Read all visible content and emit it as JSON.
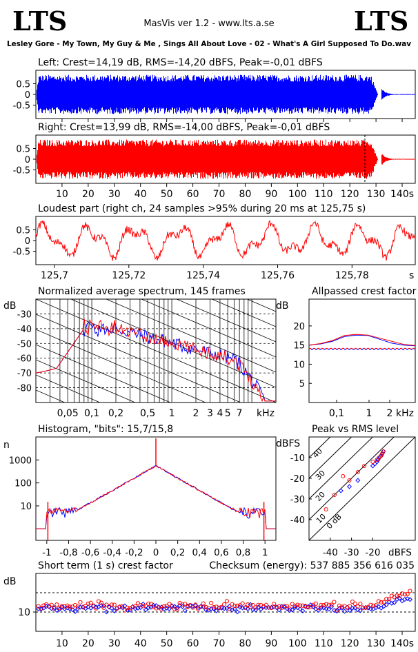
{
  "header": {
    "logo_left": "LTS",
    "logo_right": "LTS",
    "app_title": "MasVis ver 1.2 - www.lts.a.se",
    "track": "Lesley Gore - My Town, My Guy & Me , Sings All About Love - 02 - What's A Girl Supposed To Do.wav"
  },
  "colors": {
    "left": "#0000ff",
    "right": "#ff0000",
    "axis": "#000000"
  },
  "chart_data": [
    {
      "id": "left",
      "type": "line",
      "title": "Left: Crest=14,19 dB, RMS=-14,20 dBFS, Peak=-0,01 dBFS",
      "yticks": [
        "0.5",
        "0",
        "-0.5"
      ],
      "ylim": [
        -1,
        1
      ],
      "xlim": [
        0,
        145
      ],
      "envelope": {
        "duration_s": 132,
        "fade_start_s": 128,
        "end_s": 145
      }
    },
    {
      "id": "right",
      "type": "line",
      "title": "Right: Crest=13,99 dB, RMS=-14,00 dBFS, Peak=-0,01 dBFS",
      "yticks": [
        "0.5",
        "0",
        "-0.5"
      ],
      "ylim": [
        -1,
        1
      ],
      "xlim": [
        0,
        145
      ],
      "xticks": [
        "10",
        "20",
        "30",
        "40",
        "50",
        "60",
        "70",
        "80",
        "90",
        "100",
        "110",
        "120",
        "130",
        "140s"
      ],
      "marker_s": 125.75
    },
    {
      "id": "loudest",
      "type": "line",
      "title": "Loudest part (right ch, 24 samples >95% during 20 ms at 125,75 s)",
      "yticks": [
        "0.5",
        "0",
        "-0.5"
      ],
      "xticks": [
        "125,7",
        "125,72",
        "125,74",
        "125,76",
        "125,78",
        "s"
      ],
      "xlim": [
        125.695,
        125.797
      ]
    },
    {
      "id": "spectrum",
      "type": "line",
      "title": "Normalized average spectrum, 145 frames",
      "ylabel": "dB",
      "yticks": [
        "-30",
        "-40",
        "-50",
        "-60",
        "-70",
        "-80"
      ],
      "xticks": [
        "0,05",
        "0,1",
        "0,2",
        "0,5",
        "1",
        "2",
        "3",
        "4",
        "5",
        "7",
        "kHz"
      ],
      "xlim_khz": [
        0.02,
        20
      ],
      "ylim": [
        -90,
        -20
      ]
    },
    {
      "id": "allpassed",
      "type": "line",
      "title": "Allpassed crest factor",
      "ylabel": "dB",
      "yticks": [
        "20",
        "15",
        "10",
        "5"
      ],
      "xticks": [
        "0,1",
        "1",
        "2",
        "kHz"
      ],
      "ylim": [
        0,
        25
      ],
      "blue": [
        15,
        15.3,
        16,
        17.2,
        17.6,
        17.5,
        16.5,
        15.5,
        15,
        14.8
      ],
      "red": [
        15,
        15.4,
        16.2,
        17.5,
        17.8,
        17.6,
        16.8,
        16,
        15.2,
        14.9
      ],
      "reference_db": 14.1
    },
    {
      "id": "histogram",
      "type": "line",
      "title": "Histogram, \"bits\": 15,7/15,8",
      "ylabel": "n",
      "yticks": [
        "1000",
        "100",
        "10"
      ],
      "xticks": [
        "-1",
        "-0,8",
        "-0,6",
        "-0,4",
        "-0,2",
        "0",
        "0,2",
        "0,4",
        "0,6",
        "0,8",
        "1"
      ],
      "xlim": [
        -1.1,
        1.1
      ],
      "peak_n": 560
    },
    {
      "id": "peakrms",
      "type": "scatter",
      "title": "Peak vs RMS level",
      "ylabel": "dBFS",
      "yticks": [
        "-10",
        "-20",
        "-30",
        "-40"
      ],
      "xticks": [
        "-40",
        "-30",
        "-20",
        "dBFS"
      ],
      "diag_labels": [
        "40",
        "30",
        "20",
        "10",
        "0 dB"
      ],
      "blue": [
        [
          -35,
          -26
        ],
        [
          -31,
          -24
        ],
        [
          -27,
          -21
        ],
        [
          -20,
          -14
        ],
        [
          -19,
          -13
        ],
        [
          -18,
          -12
        ],
        [
          -17.5,
          -11
        ],
        [
          -17,
          -10
        ],
        [
          -16.5,
          -9.5
        ],
        [
          -16,
          -9
        ],
        [
          -15.5,
          -8
        ],
        [
          -15,
          -7
        ]
      ],
      "red": [
        [
          -42,
          -35
        ],
        [
          -38,
          -28
        ],
        [
          -34,
          -19
        ],
        [
          -31,
          -21
        ],
        [
          -27,
          -17
        ],
        [
          -24,
          -14
        ],
        [
          -20,
          -12
        ],
        [
          -18,
          -11
        ],
        [
          -17,
          -10
        ],
        [
          -16,
          -9
        ],
        [
          -15.5,
          -8
        ],
        [
          -15,
          -7
        ]
      ]
    },
    {
      "id": "shortterm",
      "type": "scatter",
      "title": "Short term (1 s) crest factor",
      "checksum": "Checksum (energy):   537 885 356 616 035",
      "ylabel": "dB",
      "yticks": [
        "10"
      ],
      "xticks": [
        "10",
        "20",
        "30",
        "40",
        "50",
        "60",
        "70",
        "80",
        "90",
        "100",
        "110",
        "120",
        "130",
        "140s"
      ],
      "xlim": [
        0,
        145
      ],
      "ylim": [
        5,
        20
      ]
    }
  ]
}
